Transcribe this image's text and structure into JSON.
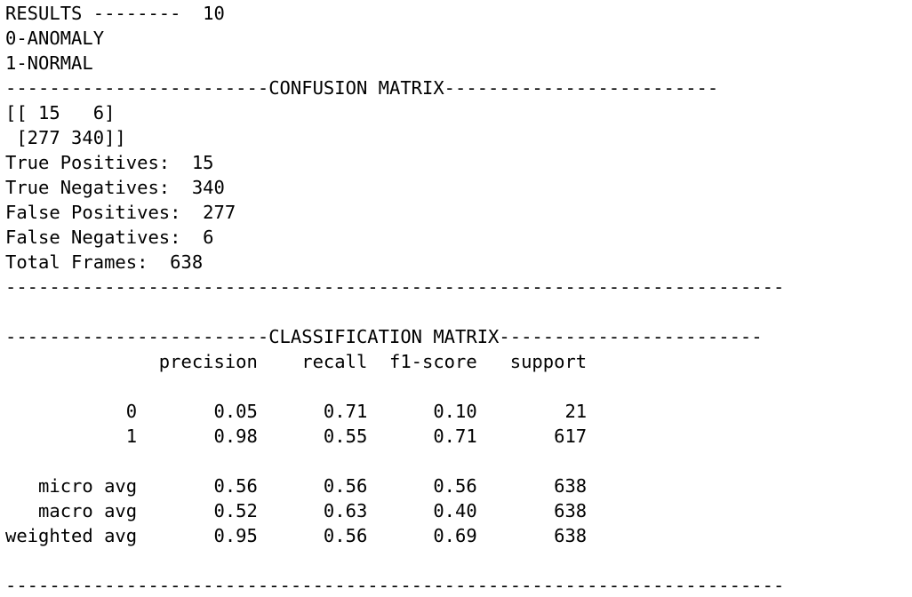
{
  "terminal": {
    "lines": [
      "RESULTS --------  10",
      "0-ANOMALY",
      "1-NORMAL",
      "------------------------CONFUSION MATRIX-------------------------",
      "[[ 15   6]",
      " [277 340]]",
      "True Positives:  15",
      "True Negatives:  340",
      "False Positives:  277",
      "False Negatives:  6",
      "Total Frames:  638",
      "-----------------------------------------------------------------------",
      "",
      "------------------------CLASSIFICATION MATRIX------------------------",
      "              precision    recall  f1-score   support",
      "",
      "           0       0.05      0.71      0.10        21",
      "           1       0.98      0.55      0.71       617",
      "",
      "   micro avg       0.56      0.56      0.56       638",
      "   macro avg       0.52      0.63      0.40       638",
      "weighted avg       0.95      0.56      0.69       638",
      "",
      "-----------------------------------------------------------------------"
    ]
  }
}
